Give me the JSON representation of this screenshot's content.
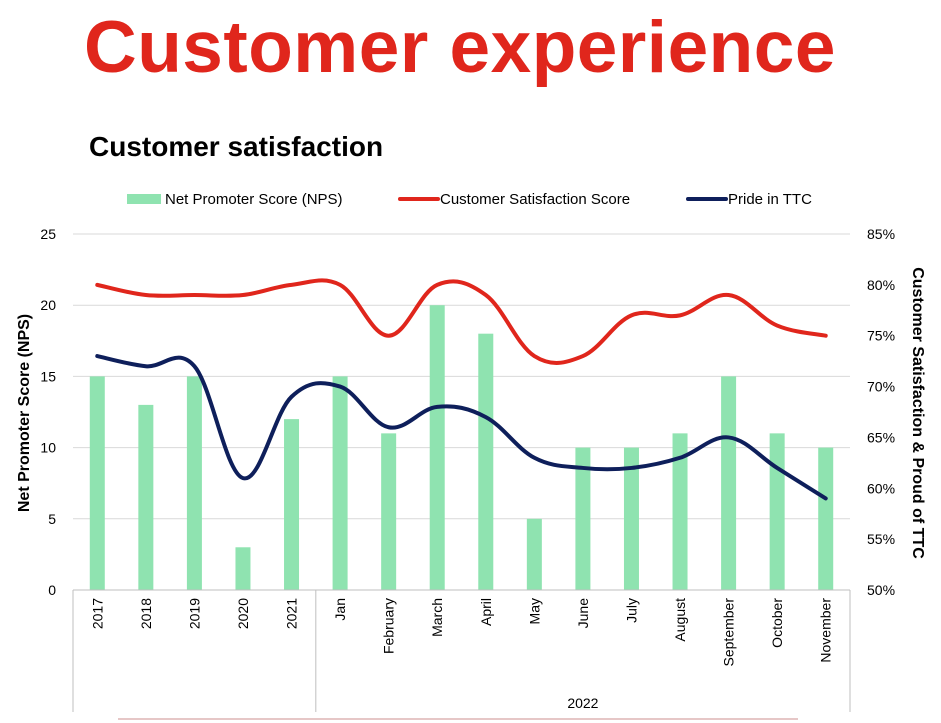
{
  "header": {
    "title": "Customer experience",
    "subtitle": "Customer satisfaction"
  },
  "colors": {
    "title": "#e0261c",
    "bars": "#8fe3b0",
    "csat": "#e0261c",
    "pride": "#0e1f5b",
    "grid": "#d9d9d9"
  },
  "chart_data": {
    "type": "bar",
    "categories": [
      "2017",
      "2018",
      "2019",
      "2020",
      "2021",
      "Jan",
      "February",
      "March",
      "April",
      "May",
      "June",
      "July",
      "August",
      "September",
      "October",
      "November"
    ],
    "group_labels": [
      {
        "label": "",
        "from": 0,
        "to": 4
      },
      {
        "label": "2022",
        "from": 5,
        "to": 15
      }
    ],
    "series": [
      {
        "name": "Net Promoter Score (NPS)",
        "type": "bar",
        "axis": "left",
        "values": [
          15,
          13,
          15,
          3,
          12,
          15,
          11,
          20,
          18,
          5,
          10,
          10,
          11,
          15,
          11,
          10
        ]
      },
      {
        "name": "Customer Satisfaction Score",
        "type": "line",
        "axis": "right",
        "values": [
          80,
          79,
          79,
          79,
          80,
          80,
          75,
          80,
          79,
          73,
          73,
          77,
          77,
          79,
          76,
          75
        ]
      },
      {
        "name": "Pride in TTC",
        "type": "line",
        "axis": "right",
        "values": [
          73,
          72,
          72,
          61,
          69,
          70,
          66,
          68,
          67,
          63,
          62,
          62,
          63,
          65,
          62,
          59
        ]
      }
    ],
    "y_left": {
      "label": "Net Promoter Score (NPS)",
      "min": 0,
      "max": 25,
      "step": 5,
      "ticks": [
        "0",
        "5",
        "10",
        "15",
        "20",
        "25"
      ]
    },
    "y_right": {
      "label": "Customer Satisfaction & Proud of TTC",
      "min": 50,
      "max": 85,
      "step": 5,
      "ticks": [
        "50%",
        "55%",
        "60%",
        "65%",
        "70%",
        "75%",
        "80%",
        "85%"
      ]
    },
    "grid": true,
    "legend_position": "top"
  }
}
